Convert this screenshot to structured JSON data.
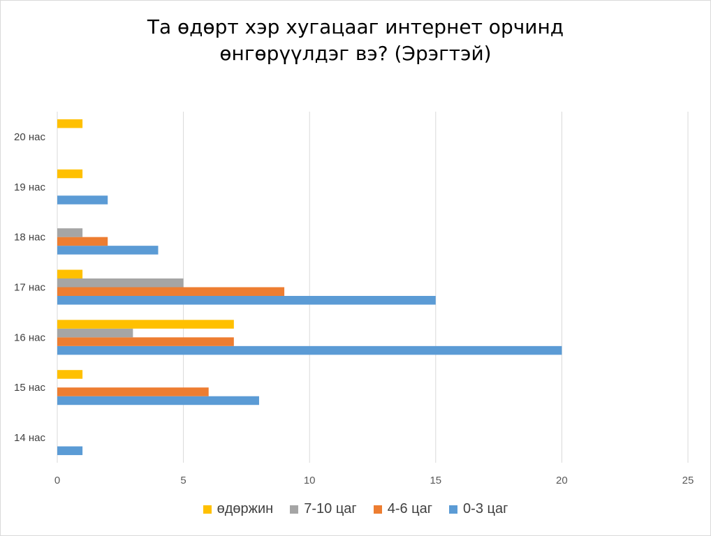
{
  "chart_data": {
    "type": "bar",
    "orientation": "horizontal",
    "title_lines": [
      "Та өдөрт хэр хугацааг интернет орчинд",
      "өнгөрүүлдэг вэ? (Эрэгтэй)"
    ],
    "categories": [
      "14 нас",
      "15 нас",
      "16 нас",
      "17 нас",
      "18 нас",
      "19 нас",
      "20 нас"
    ],
    "series": [
      {
        "name": "0-3 цаг",
        "color": "#5b9bd5",
        "values": [
          1,
          8,
          20,
          15,
          4,
          2,
          0
        ]
      },
      {
        "name": "4-6 цаг",
        "color": "#ed7d31",
        "values": [
          0,
          6,
          7,
          9,
          2,
          0,
          0
        ]
      },
      {
        "name": "7-10 цаг",
        "color": "#a5a5a5",
        "values": [
          0,
          0,
          3,
          5,
          1,
          0,
          0
        ]
      },
      {
        "name": "өдөржин",
        "color": "#ffc000",
        "values": [
          0,
          1,
          7,
          1,
          0,
          1,
          1
        ]
      }
    ],
    "xlim": [
      0,
      25
    ],
    "xticks": [
      "0",
      "5",
      "10",
      "15",
      "20",
      "25"
    ],
    "grid": true,
    "legend_position": "bottom",
    "legend_order": [
      "өдөржин",
      "7-10 цаг",
      "4-6 цаг",
      "0-3 цаг"
    ]
  }
}
